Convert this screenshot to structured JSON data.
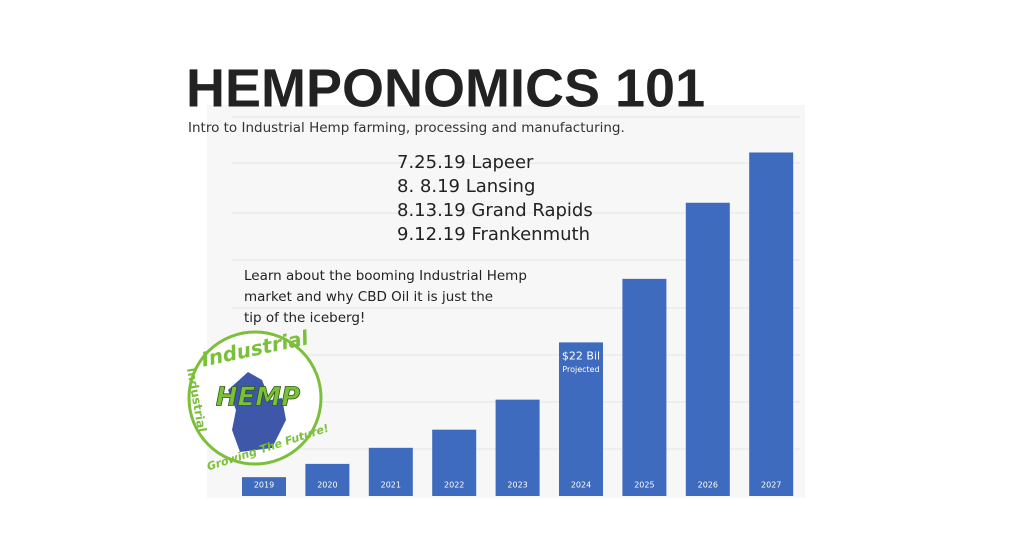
{
  "chart_data": {
    "type": "bar",
    "title": "HEMPONOMICS 101",
    "subtitle": "Intro to Industrial Hemp farming, processing and manufacturing.",
    "events": [
      "7.25.19 Lapeer",
      "8. 8.19 Lansing",
      "8.13.19 Grand Rapids",
      "9.12.19 Frankenmuth"
    ],
    "blurb": [
      "Learn about the booming Industrial Hemp",
      "market and why CBD Oil it is just the",
      "tip of the iceberg!"
    ],
    "annotation": "Projected",
    "logo": {
      "top": "Industrial",
      "side": "Industrial",
      "center": "HEMP",
      "bottom": "Growing The Future!"
    },
    "categories": [
      "2019",
      "2020",
      "2021",
      "2022",
      "2023",
      "2024",
      "2025",
      "2026",
      "2027"
    ],
    "values": [
      2.7,
      4.6,
      6.9,
      9.5,
      13.8,
      22,
      31.1,
      42,
      49.2
    ],
    "value_labels": [
      null,
      null,
      null,
      null,
      null,
      "$22 Bil",
      null,
      null,
      null
    ],
    "color": "#3e6bbd",
    "ylim": [
      0,
      56
    ]
  }
}
